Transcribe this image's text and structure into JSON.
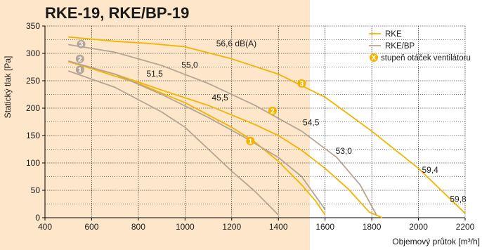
{
  "chart_data": {
    "type": "line",
    "title": "RKE-19, RKE/BP-19",
    "xlabel": "Objemový průtok [m³/h]",
    "ylabel": "Statický tlak [Pa]",
    "xlim": [
      400,
      2200
    ],
    "ylim": [
      0,
      350
    ],
    "x_ticks": [
      400,
      600,
      800,
      1000,
      1200,
      1400,
      1600,
      1800,
      2000,
      2200
    ],
    "y_ticks": [
      0,
      50,
      100,
      150,
      200,
      250,
      300,
      350
    ],
    "grid": true,
    "legend_position": "top-right",
    "legend": [
      {
        "label": "RKE",
        "kind": "line",
        "color": "#f2b400"
      },
      {
        "label": "RKE/BP",
        "kind": "line",
        "color": "#b5a596"
      },
      {
        "label": "stupeň otáček ventilátoru",
        "kind": "marker",
        "marker_text": "X",
        "color": "#f2b400"
      }
    ],
    "colors": {
      "rke": "#f2b400",
      "rke_bp": "#b5a596",
      "highlight_bg": "#fde6c9"
    },
    "series": [
      {
        "name": "RKE",
        "speed": "3",
        "color": "#f2b400",
        "points": [
          [
            500,
            330
          ],
          [
            700,
            322
          ],
          [
            850,
            318
          ],
          [
            1000,
            312
          ],
          [
            1200,
            290
          ],
          [
            1400,
            262
          ],
          [
            1600,
            220
          ],
          [
            1800,
            158
          ],
          [
            2000,
            90
          ],
          [
            2200,
            8
          ]
        ]
      },
      {
        "name": "RKE",
        "speed": "2",
        "color": "#f2b400",
        "points": [
          [
            500,
            285
          ],
          [
            700,
            262
          ],
          [
            900,
            233
          ],
          [
            1100,
            205
          ],
          [
            1300,
            170
          ],
          [
            1400,
            150
          ],
          [
            1500,
            123
          ],
          [
            1600,
            90
          ],
          [
            1700,
            52
          ],
          [
            1790,
            10
          ],
          [
            1845,
            0
          ]
        ]
      },
      {
        "name": "RKE",
        "speed": "1",
        "color": "#f2b400",
        "points": [
          [
            500,
            285
          ],
          [
            600,
            272
          ],
          [
            800,
            245
          ],
          [
            1000,
            210
          ],
          [
            1200,
            165
          ],
          [
            1300,
            138
          ],
          [
            1400,
            103
          ],
          [
            1500,
            60
          ],
          [
            1560,
            30
          ],
          [
            1600,
            5
          ]
        ]
      },
      {
        "name": "RKE/BP",
        "speed": "3",
        "color": "#b5a596",
        "points": [
          [
            500,
            316
          ],
          [
            700,
            302
          ],
          [
            900,
            278
          ],
          [
            1100,
            245
          ],
          [
            1300,
            205
          ],
          [
            1500,
            158
          ],
          [
            1650,
            110
          ],
          [
            1750,
            60
          ],
          [
            1820,
            5
          ]
        ]
      },
      {
        "name": "RKE/BP",
        "speed": "2",
        "color": "#b5a596",
        "points": [
          [
            500,
            286
          ],
          [
            700,
            262
          ],
          [
            900,
            225
          ],
          [
            1100,
            183
          ],
          [
            1250,
            148
          ],
          [
            1400,
            110
          ],
          [
            1500,
            75
          ],
          [
            1600,
            15
          ]
        ]
      },
      {
        "name": "RKE/BP",
        "speed": "1",
        "color": "#b5a596",
        "points": [
          [
            500,
            268
          ],
          [
            700,
            238
          ],
          [
            900,
            193
          ],
          [
            1000,
            165
          ],
          [
            1100,
            125
          ],
          [
            1200,
            85
          ],
          [
            1300,
            48
          ],
          [
            1400,
            5
          ]
        ]
      }
    ],
    "speed_markers": [
      {
        "text": "3",
        "x": 1500,
        "y": 245,
        "color": "#f2b400"
      },
      {
        "text": "2",
        "x": 1375,
        "y": 195,
        "color": "#f2b400"
      },
      {
        "text": "1",
        "x": 1280,
        "y": 140,
        "color": "#f2b400"
      },
      {
        "text": "3",
        "x": 555,
        "y": 317,
        "color": "#b5a596"
      },
      {
        "text": "2",
        "x": 550,
        "y": 290,
        "color": "#b5a596"
      },
      {
        "text": "1",
        "x": 550,
        "y": 270,
        "color": "#b5a596"
      }
    ],
    "annotations": [
      {
        "text": "56,6 dB(A)",
        "x": 1220,
        "y": 318
      },
      {
        "text": "55,0",
        "x": 1020,
        "y": 279
      },
      {
        "text": "51,5",
        "x": 870,
        "y": 263
      },
      {
        "text": "45,5",
        "x": 1150,
        "y": 219
      },
      {
        "text": "54,5",
        "x": 1540,
        "y": 174
      },
      {
        "text": "53,0",
        "x": 1680,
        "y": 122
      },
      {
        "text": "59,4",
        "x": 2050,
        "y": 87
      },
      {
        "text": "59,8",
        "x": 2170,
        "y": 34
      }
    ]
  }
}
